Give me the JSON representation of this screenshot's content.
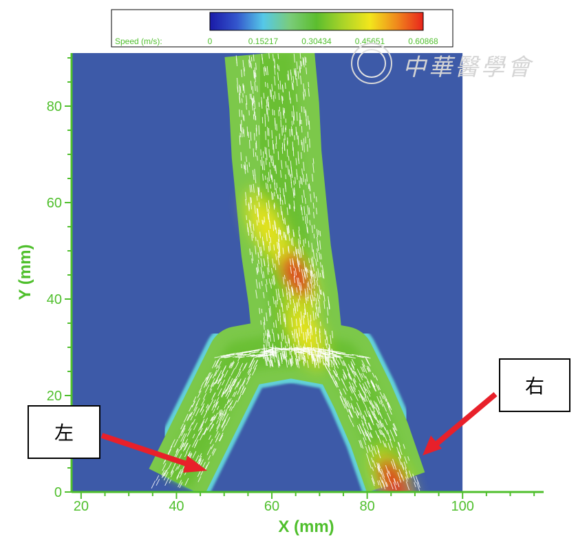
{
  "chart_data": {
    "type": "heatmap",
    "title": "",
    "xlabel": "X (mm)",
    "ylabel": "Y (mm)",
    "xlim": [
      18,
      117
    ],
    "ylim": [
      0,
      91
    ],
    "x_ticks": [
      20,
      40,
      60,
      80,
      100
    ],
    "y_ticks": [
      0,
      20,
      40,
      60,
      80
    ],
    "field_extent_x": [
      18,
      100
    ],
    "colorbar": {
      "label": "Speed (m/s):",
      "ticks": [
        "0",
        "0.15217",
        "0.30434",
        "0.45651",
        "0.60868"
      ],
      "range": [
        0,
        0.60868
      ],
      "colors": [
        "#1a1aa8",
        "#3355cc",
        "#55c8e8",
        "#7acc7a",
        "#5cbd2e",
        "#aad428",
        "#f2e61c",
        "#f08a1c",
        "#e8241c"
      ]
    },
    "background_speed": 0,
    "channel": {
      "trunk_center": [
        [
          59.5,
          91
        ],
        [
          60.5,
          80
        ],
        [
          61,
          70
        ],
        [
          62,
          60
        ],
        [
          63,
          50
        ],
        [
          64.5,
          40
        ],
        [
          65.5,
          30
        ]
      ],
      "trunk_half_width": 9,
      "left_branch_center": [
        [
          53,
          28
        ],
        [
          49,
          20
        ],
        [
          45,
          12
        ],
        [
          40,
          2
        ]
      ],
      "right_branch_center": [
        [
          75,
          28
        ],
        [
          79,
          20
        ],
        [
          82.5,
          12
        ],
        [
          86,
          2
        ]
      ],
      "branch_half_width": 6
    },
    "hotspots": [
      {
        "x": 65,
        "y": 45,
        "speed": 0.6
      },
      {
        "x": 67,
        "y": 33,
        "speed": 0.45
      },
      {
        "x": 59,
        "y": 55,
        "speed": 0.42
      },
      {
        "x": 85.5,
        "y": 2,
        "speed": 0.6
      }
    ],
    "annotations": [
      {
        "text": "左",
        "target_x": 45,
        "target_y": 5
      },
      {
        "text": "右",
        "target_x": 92,
        "target_y": 8
      }
    ],
    "watermark_text": "中華醫學會",
    "grid": false
  }
}
